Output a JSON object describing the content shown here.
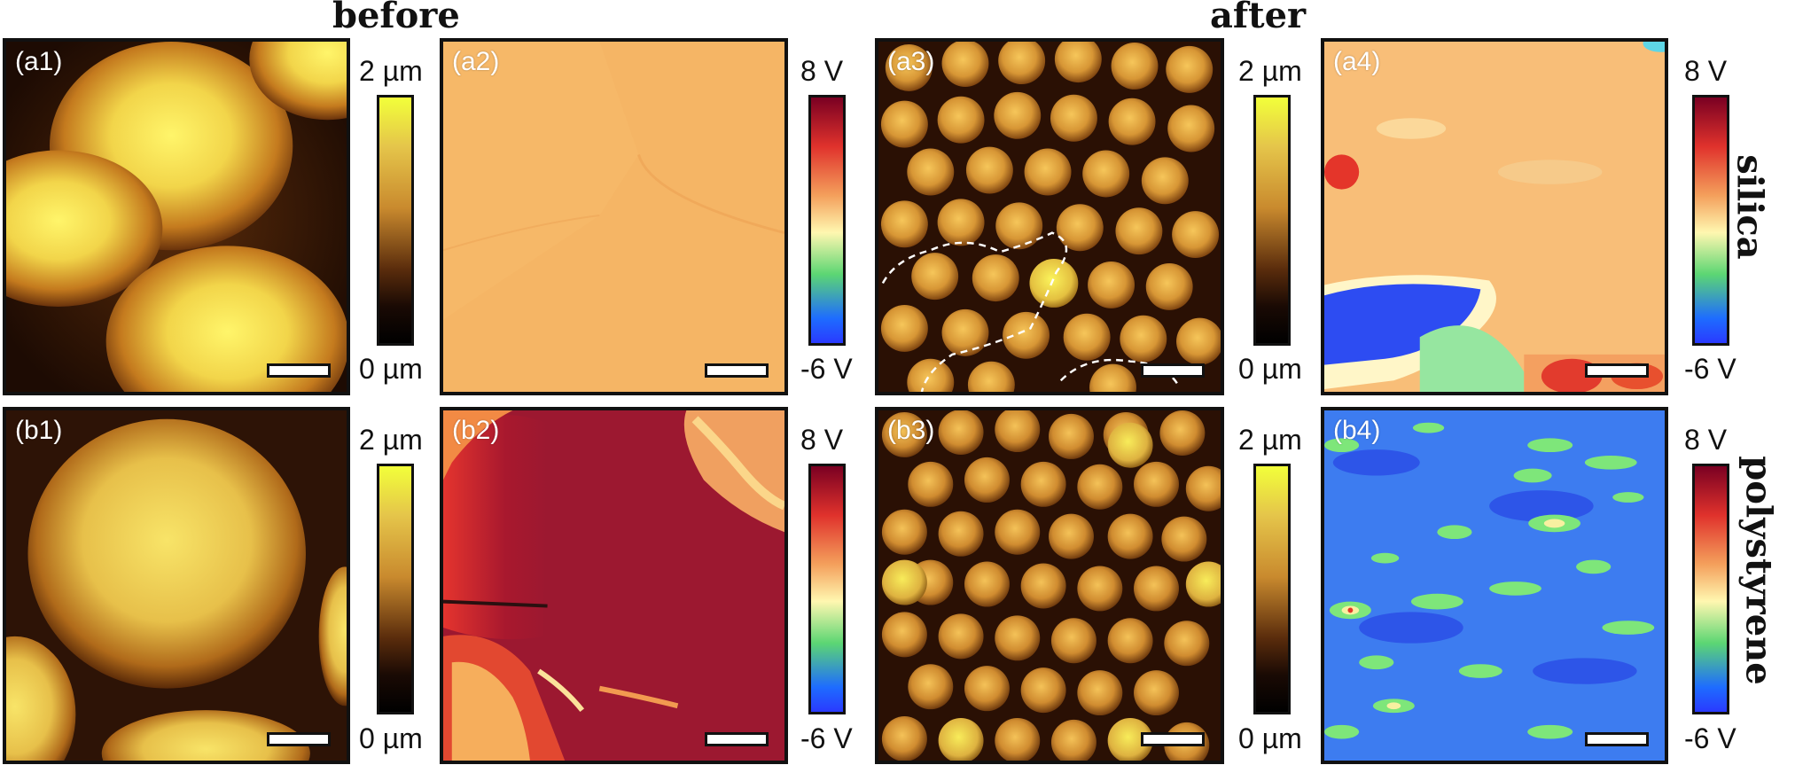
{
  "headers": {
    "before": "before",
    "after": "after"
  },
  "rows": {
    "silica": "silica",
    "polystyrene": "polystyrene"
  },
  "panels": {
    "a1": "(a1)",
    "a2": "(a2)",
    "a3": "(a3)",
    "a4": "(a4)",
    "b1": "(b1)",
    "b2": "(b2)",
    "b3": "(b3)",
    "b4": "(b4)"
  },
  "colorbars": {
    "height_max": "2 µm",
    "height_min": "0 µm",
    "volt_max": "8 V",
    "volt_min": "-6 V"
  }
}
